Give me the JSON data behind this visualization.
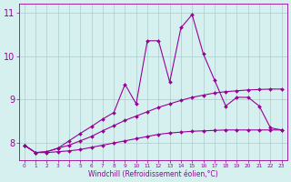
{
  "xlabel": "Windchill (Refroidissement éolien,°C)",
  "x_values": [
    0,
    1,
    2,
    3,
    4,
    5,
    6,
    7,
    8,
    9,
    10,
    11,
    12,
    13,
    14,
    15,
    16,
    17,
    18,
    19,
    20,
    21,
    22,
    23
  ],
  "line1": [
    7.95,
    7.78,
    7.78,
    7.8,
    7.82,
    7.85,
    7.9,
    7.95,
    8.0,
    8.05,
    8.1,
    8.15,
    8.2,
    8.23,
    8.25,
    8.27,
    8.28,
    8.29,
    8.3,
    8.3,
    8.3,
    8.3,
    8.3,
    8.3
  ],
  "line2": [
    7.95,
    7.78,
    7.8,
    7.88,
    7.95,
    8.05,
    8.15,
    8.28,
    8.4,
    8.52,
    8.62,
    8.72,
    8.82,
    8.9,
    8.98,
    9.05,
    9.1,
    9.15,
    9.18,
    9.2,
    9.22,
    9.23,
    9.24,
    9.24
  ],
  "line3": [
    7.95,
    7.78,
    7.8,
    7.88,
    8.05,
    8.22,
    8.38,
    8.55,
    8.7,
    9.35,
    8.9,
    10.35,
    10.35,
    9.4,
    10.65,
    10.95,
    10.05,
    9.45,
    8.85,
    9.05,
    9.05,
    8.85,
    8.35,
    8.3
  ],
  "color": "#990099",
  "bg_color": "#d6f0f0",
  "grid_color": "#aacccc",
  "ylim": [
    7.6,
    11.2
  ],
  "xlim": [
    -0.5,
    23.5
  ],
  "yticks": [
    8,
    9,
    10,
    11
  ],
  "xtick_labels": [
    "0",
    "1",
    "2",
    "3",
    "4",
    "5",
    "6",
    "7",
    "8",
    "9",
    "10",
    "11",
    "12",
    "13",
    "14",
    "15",
    "16",
    "17",
    "18",
    "19",
    "20",
    "21",
    "22",
    "23"
  ]
}
